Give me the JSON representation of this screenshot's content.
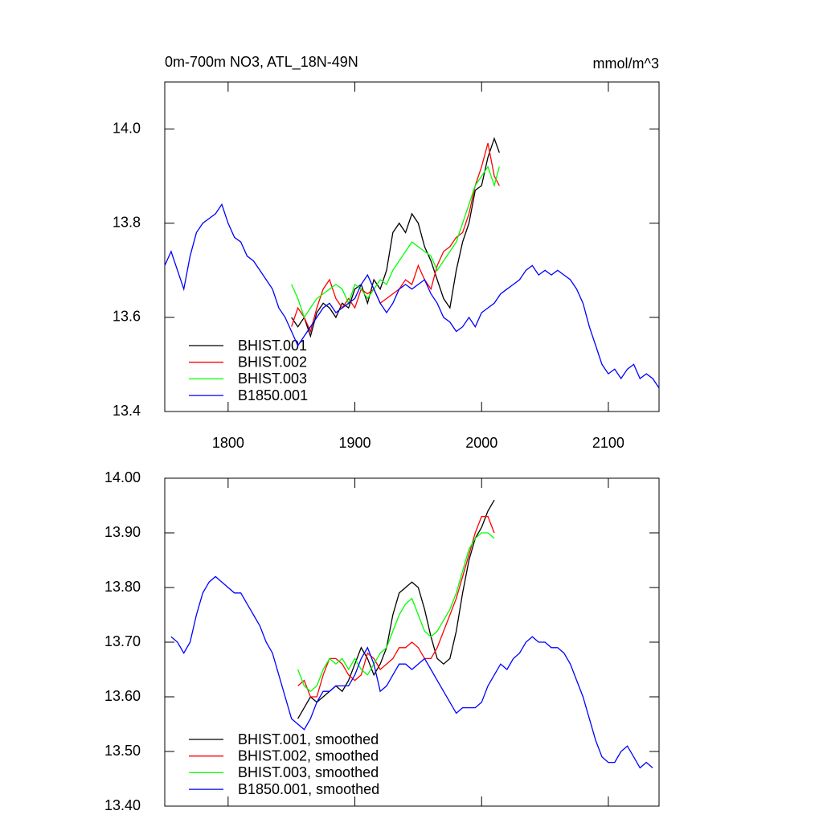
{
  "chart_data": [
    {
      "type": "line",
      "title": "0m-700m NO3, ATL_18N-49N",
      "units": "mmol/m^3",
      "xlim": [
        1750,
        2140
      ],
      "xticks": [
        1800,
        1900,
        2000,
        2100
      ],
      "xtick_labels": true,
      "ylim": [
        13.4,
        14.1
      ],
      "yticks": [
        13.4,
        13.6,
        13.8,
        {
          "value": 14,
          "label": "14.0"
        }
      ],
      "series": [
        {
          "name": "BHIST.001",
          "color": "#000000",
          "x": [
            1850,
            1855,
            1860,
            1865,
            1870,
            1875,
            1880,
            1885,
            1890,
            1895,
            1900,
            1905,
            1910,
            1915,
            1920,
            1925,
            1930,
            1935,
            1940,
            1945,
            1950,
            1955,
            1960,
            1965,
            1970,
            1975,
            1980,
            1985,
            1990,
            1995,
            2000,
            2005,
            2010,
            2014
          ],
          "values": [
            13.6,
            13.58,
            13.6,
            13.56,
            13.61,
            13.63,
            13.62,
            13.6,
            13.63,
            13.62,
            13.66,
            13.67,
            13.63,
            13.68,
            13.66,
            13.7,
            13.78,
            13.8,
            13.78,
            13.82,
            13.8,
            13.75,
            13.72,
            13.68,
            13.64,
            13.62,
            13.7,
            13.76,
            13.8,
            13.87,
            13.88,
            13.94,
            13.98,
            13.95
          ]
        },
        {
          "name": "BHIST.002",
          "color": "#ff0000",
          "x": [
            1850,
            1855,
            1860,
            1865,
            1870,
            1875,
            1880,
            1885,
            1890,
            1895,
            1900,
            1905,
            1910,
            1915,
            1920,
            1925,
            1930,
            1935,
            1940,
            1945,
            1950,
            1955,
            1960,
            1965,
            1970,
            1975,
            1980,
            1985,
            1990,
            1995,
            2000,
            2005,
            2010,
            2014
          ],
          "values": [
            13.58,
            13.62,
            13.6,
            13.57,
            13.62,
            13.66,
            13.68,
            13.64,
            13.62,
            13.64,
            13.62,
            13.66,
            13.65,
            13.66,
            13.63,
            13.64,
            13.65,
            13.66,
            13.68,
            13.67,
            13.71,
            13.68,
            13.66,
            13.71,
            13.74,
            13.75,
            13.77,
            13.78,
            13.82,
            13.88,
            13.92,
            13.97,
            13.9,
            13.88
          ]
        },
        {
          "name": "BHIST.003",
          "color": "#00ff00",
          "x": [
            1850,
            1855,
            1860,
            1865,
            1870,
            1875,
            1880,
            1885,
            1890,
            1895,
            1900,
            1905,
            1910,
            1915,
            1920,
            1925,
            1930,
            1935,
            1940,
            1945,
            1950,
            1955,
            1960,
            1965,
            1970,
            1975,
            1980,
            1985,
            1990,
            1995,
            2000,
            2005,
            2010,
            2014
          ],
          "values": [
            13.67,
            13.64,
            13.6,
            13.62,
            13.64,
            13.65,
            13.66,
            13.67,
            13.66,
            13.63,
            13.67,
            13.66,
            13.64,
            13.66,
            13.68,
            13.67,
            13.7,
            13.72,
            13.74,
            13.76,
            13.75,
            13.74,
            13.73,
            13.7,
            13.72,
            13.74,
            13.76,
            13.8,
            13.84,
            13.88,
            13.9,
            13.92,
            13.88,
            13.92
          ]
        },
        {
          "name": "B1850.001",
          "color": "#0000ff",
          "x": [
            1750,
            1755,
            1760,
            1765,
            1770,
            1775,
            1780,
            1785,
            1790,
            1795,
            1800,
            1805,
            1810,
            1815,
            1820,
            1825,
            1830,
            1835,
            1840,
            1845,
            1850,
            1855,
            1860,
            1865,
            1870,
            1875,
            1880,
            1885,
            1890,
            1895,
            1900,
            1905,
            1910,
            1915,
            1920,
            1925,
            1930,
            1935,
            1940,
            1945,
            1950,
            1955,
            1960,
            1965,
            1970,
            1975,
            1980,
            1985,
            1990,
            1995,
            2000,
            2005,
            2010,
            2015,
            2020,
            2025,
            2030,
            2035,
            2040,
            2045,
            2050,
            2055,
            2060,
            2065,
            2070,
            2075,
            2080,
            2085,
            2090,
            2095,
            2100,
            2105,
            2110,
            2115,
            2120,
            2125,
            2130,
            2135,
            2140
          ],
          "values": [
            13.71,
            13.74,
            13.7,
            13.66,
            13.73,
            13.78,
            13.8,
            13.81,
            13.82,
            13.84,
            13.8,
            13.77,
            13.76,
            13.73,
            13.72,
            13.7,
            13.68,
            13.66,
            13.62,
            13.6,
            13.57,
            13.54,
            13.56,
            13.58,
            13.6,
            13.62,
            13.63,
            13.61,
            13.62,
            13.63,
            13.64,
            13.67,
            13.69,
            13.66,
            13.63,
            13.61,
            13.63,
            13.66,
            13.67,
            13.66,
            13.67,
            13.68,
            13.65,
            13.63,
            13.6,
            13.59,
            13.57,
            13.58,
            13.6,
            13.58,
            13.61,
            13.62,
            13.63,
            13.65,
            13.66,
            13.67,
            13.68,
            13.7,
            13.71,
            13.69,
            13.7,
            13.69,
            13.7,
            13.69,
            13.68,
            13.66,
            13.63,
            13.58,
            13.54,
            13.5,
            13.48,
            13.49,
            13.47,
            13.49,
            13.5,
            13.47,
            13.48,
            13.47,
            13.45
          ]
        }
      ]
    },
    {
      "type": "line",
      "xlim": [
        1750,
        2140
      ],
      "xticks": [
        1800,
        1900,
        2000,
        2100
      ],
      "xtick_labels": false,
      "ylim": [
        13.4,
        14.0
      ],
      "yticks": [
        {
          "value": 13.4,
          "label": "13.40"
        },
        {
          "value": 13.5,
          "label": "13.50"
        },
        {
          "value": 13.6,
          "label": "13.60"
        },
        {
          "value": 13.7,
          "label": "13.70"
        },
        {
          "value": 13.8,
          "label": "13.80"
        },
        {
          "value": 13.9,
          "label": "13.90"
        },
        {
          "value": 14,
          "label": "14.00"
        }
      ],
      "series": [
        {
          "name": "BHIST.001, smoothed",
          "color": "#000000",
          "x": [
            1855,
            1860,
            1865,
            1870,
            1875,
            1880,
            1885,
            1890,
            1895,
            1900,
            1905,
            1910,
            1915,
            1920,
            1925,
            1930,
            1935,
            1940,
            1945,
            1950,
            1955,
            1960,
            1965,
            1970,
            1975,
            1980,
            1985,
            1990,
            1995,
            2000,
            2005,
            2010
          ],
          "values": [
            13.56,
            13.58,
            13.6,
            13.59,
            13.6,
            13.61,
            13.62,
            13.61,
            13.63,
            13.66,
            13.69,
            13.67,
            13.64,
            13.66,
            13.69,
            13.75,
            13.79,
            13.8,
            13.81,
            13.8,
            13.76,
            13.71,
            13.67,
            13.66,
            13.67,
            13.72,
            13.79,
            13.85,
            13.89,
            13.91,
            13.94,
            13.96
          ]
        },
        {
          "name": "BHIST.002, smoothed",
          "color": "#ff0000",
          "x": [
            1855,
            1860,
            1865,
            1870,
            1875,
            1880,
            1885,
            1890,
            1895,
            1900,
            1905,
            1910,
            1915,
            1920,
            1925,
            1930,
            1935,
            1940,
            1945,
            1950,
            1955,
            1960,
            1965,
            1970,
            1975,
            1980,
            1985,
            1990,
            1995,
            2000,
            2005,
            2010
          ],
          "values": [
            13.62,
            13.63,
            13.6,
            13.6,
            13.64,
            13.67,
            13.67,
            13.66,
            13.64,
            13.63,
            13.64,
            13.68,
            13.67,
            13.65,
            13.66,
            13.67,
            13.69,
            13.69,
            13.7,
            13.69,
            13.67,
            13.67,
            13.69,
            13.72,
            13.75,
            13.78,
            13.82,
            13.86,
            13.9,
            13.93,
            13.93,
            13.9
          ]
        },
        {
          "name": "BHIST.003, smoothed",
          "color": "#00ff00",
          "x": [
            1855,
            1860,
            1865,
            1870,
            1875,
            1880,
            1885,
            1890,
            1895,
            1900,
            1905,
            1910,
            1915,
            1920,
            1925,
            1930,
            1935,
            1940,
            1945,
            1950,
            1955,
            1960,
            1965,
            1970,
            1975,
            1980,
            1985,
            1990,
            1995,
            2000,
            2005,
            2010
          ],
          "values": [
            13.65,
            13.62,
            13.61,
            13.62,
            13.65,
            13.67,
            13.66,
            13.67,
            13.65,
            13.67,
            13.65,
            13.64,
            13.66,
            13.68,
            13.69,
            13.72,
            13.75,
            13.77,
            13.78,
            13.75,
            13.72,
            13.71,
            13.72,
            13.74,
            13.76,
            13.79,
            13.83,
            13.87,
            13.89,
            13.9,
            13.9,
            13.89
          ]
        },
        {
          "name": "B1850.001, smoothed",
          "color": "#0000ff",
          "x": [
            1755,
            1760,
            1765,
            1770,
            1775,
            1780,
            1785,
            1790,
            1795,
            1800,
            1805,
            1810,
            1815,
            1820,
            1825,
            1830,
            1835,
            1840,
            1845,
            1850,
            1855,
            1860,
            1865,
            1870,
            1875,
            1880,
            1885,
            1890,
            1895,
            1900,
            1905,
            1910,
            1915,
            1920,
            1925,
            1930,
            1935,
            1940,
            1945,
            1950,
            1955,
            1960,
            1965,
            1970,
            1975,
            1980,
            1985,
            1990,
            1995,
            2000,
            2005,
            2010,
            2015,
            2020,
            2025,
            2030,
            2035,
            2040,
            2045,
            2050,
            2055,
            2060,
            2065,
            2070,
            2075,
            2080,
            2085,
            2090,
            2095,
            2100,
            2105,
            2110,
            2115,
            2120,
            2125,
            2130,
            2135
          ],
          "values": [
            13.71,
            13.7,
            13.68,
            13.7,
            13.75,
            13.79,
            13.81,
            13.82,
            13.81,
            13.8,
            13.79,
            13.79,
            13.77,
            13.75,
            13.73,
            13.7,
            13.68,
            13.64,
            13.6,
            13.56,
            13.55,
            13.54,
            13.56,
            13.59,
            13.61,
            13.61,
            13.62,
            13.62,
            13.62,
            13.64,
            13.67,
            13.69,
            13.66,
            13.61,
            13.62,
            13.64,
            13.66,
            13.66,
            13.65,
            13.66,
            13.67,
            13.65,
            13.63,
            13.61,
            13.59,
            13.57,
            13.58,
            13.58,
            13.58,
            13.59,
            13.62,
            13.64,
            13.66,
            13.65,
            13.67,
            13.68,
            13.7,
            13.71,
            13.7,
            13.7,
            13.69,
            13.69,
            13.68,
            13.66,
            13.63,
            13.6,
            13.56,
            13.52,
            13.49,
            13.48,
            13.48,
            13.5,
            13.51,
            13.49,
            13.47,
            13.48,
            13.47
          ]
        }
      ]
    }
  ]
}
